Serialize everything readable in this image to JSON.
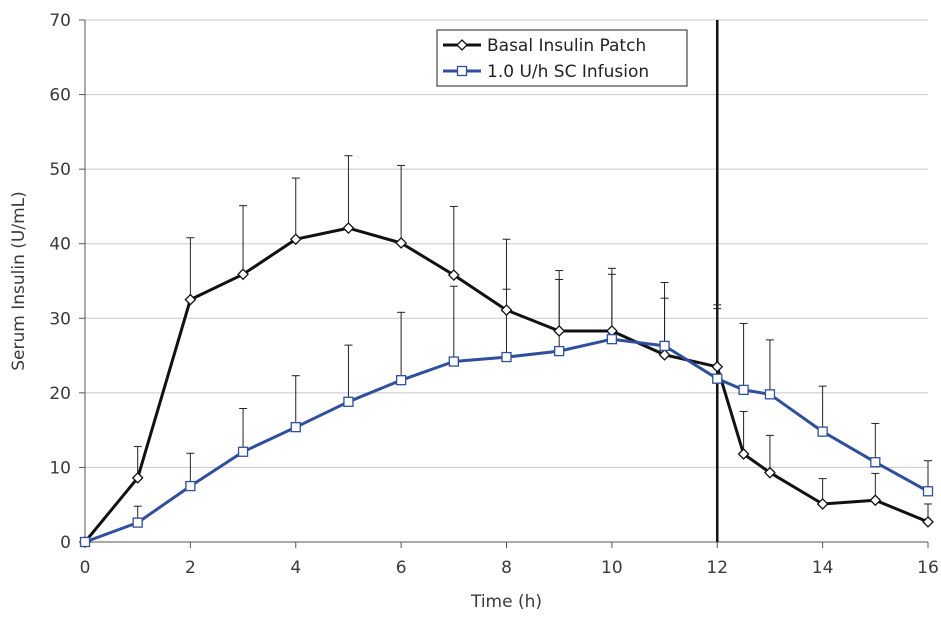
{
  "chart_data": {
    "type": "line",
    "title": "",
    "xlabel": "Time (h)",
    "ylabel": "Serum Insulin (U/mL)",
    "xlim": [
      0,
      16
    ],
    "ylim": [
      0,
      70
    ],
    "x_ticks": [
      0,
      2,
      4,
      6,
      8,
      10,
      12,
      14,
      16
    ],
    "y_ticks": [
      0,
      10,
      20,
      30,
      40,
      50,
      60,
      70
    ],
    "grid": "horizontal",
    "legend_position": "top-right",
    "vertical_marker_x": 12,
    "series": [
      {
        "name": "Basal Insulin Patch",
        "color": "#111111",
        "marker": "diamond",
        "x": [
          0,
          1,
          2,
          3,
          4,
          5,
          6,
          7,
          8,
          9,
          10,
          11,
          12,
          12.5,
          13,
          14,
          15,
          16
        ],
        "values": [
          0,
          8.6,
          32.5,
          35.9,
          40.6,
          42.1,
          40.1,
          35.8,
          31.1,
          28.3,
          28.3,
          25.1,
          23.5,
          11.8,
          9.3,
          5.1,
          5.6,
          2.7
        ],
        "error_upper": [
          0,
          12.8,
          40.8,
          45.1,
          48.8,
          51.8,
          50.5,
          45.0,
          40.6,
          36.4,
          36.7,
          34.8,
          31.8,
          17.5,
          14.3,
          8.5,
          9.2,
          5.1
        ]
      },
      {
        "name": "1.0 U/h SC Infusion",
        "color": "#2f4e9c",
        "marker": "square",
        "x": [
          0,
          1,
          2,
          3,
          4,
          5,
          6,
          7,
          8,
          9,
          10,
          11,
          12,
          12.5,
          13,
          14,
          15,
          16
        ],
        "values": [
          0,
          2.6,
          7.5,
          12.1,
          15.4,
          18.8,
          21.7,
          24.2,
          24.8,
          25.6,
          27.2,
          26.3,
          21.9,
          20.4,
          19.8,
          14.8,
          10.7,
          6.8
        ],
        "error_upper": [
          0,
          4.8,
          11.9,
          17.9,
          22.3,
          26.4,
          30.8,
          34.3,
          33.9,
          35.2,
          35.9,
          32.7,
          31.3,
          29.3,
          27.1,
          20.9,
          15.9,
          10.9
        ]
      }
    ]
  }
}
